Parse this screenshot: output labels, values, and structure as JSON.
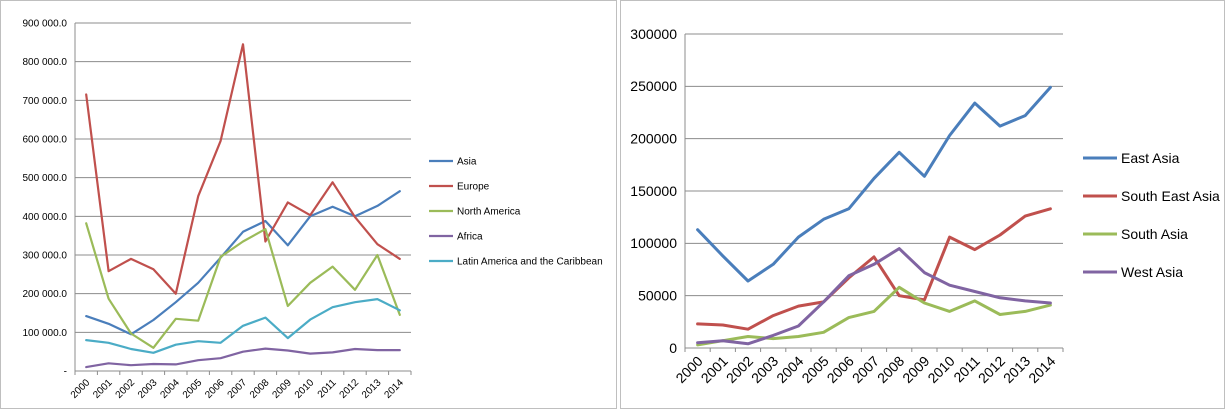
{
  "chart_data": [
    {
      "type": "line",
      "title": "",
      "xlabel": "",
      "ylabel": "",
      "ylim": [
        0,
        900000
      ],
      "y_ticks": [
        "-",
        "100 000.0",
        "200 000.0",
        "300 000.0",
        "400 000.0",
        "500 000.0",
        "600 000.0",
        "700 000.0",
        "800 000.0",
        "900 000.0"
      ],
      "grid": true,
      "legend_position": "right",
      "categories": [
        "2000",
        "2001",
        "2002",
        "2003",
        "2004",
        "2005",
        "2006",
        "2007",
        "2008",
        "2009",
        "2010",
        "2011",
        "2012",
        "2013",
        "2014"
      ],
      "series": [
        {
          "name": "Asia",
          "color": "#4a7ebb",
          "values": [
            142000,
            122000,
            95000,
            132000,
            178000,
            228000,
            293000,
            360000,
            388000,
            325000,
            400000,
            425000,
            400000,
            427000,
            465000
          ]
        },
        {
          "name": "Europe",
          "color": "#c0504d",
          "values": [
            715000,
            258000,
            290000,
            263000,
            200000,
            452000,
            595000,
            845000,
            335000,
            436000,
            403000,
            488000,
            398000,
            328000,
            290000
          ]
        },
        {
          "name": "North America",
          "color": "#9bbb59",
          "values": [
            382000,
            187000,
            97000,
            60000,
            135000,
            130000,
            295000,
            335000,
            367000,
            168000,
            228000,
            270000,
            210000,
            300000,
            145000
          ]
        },
        {
          "name": "Africa",
          "color": "#8064a2",
          "values": [
            10000,
            20000,
            15000,
            18000,
            17000,
            28000,
            33000,
            50000,
            58000,
            53000,
            45000,
            48000,
            57000,
            54000,
            54000
          ]
        },
        {
          "name": "Latin America and the Caribbean",
          "color": "#4bacc6",
          "values": [
            80000,
            73000,
            57000,
            47000,
            68000,
            77000,
            73000,
            117000,
            138000,
            85000,
            133000,
            165000,
            178000,
            186000,
            157000
          ]
        }
      ]
    },
    {
      "type": "line",
      "title": "",
      "xlabel": "",
      "ylabel": "",
      "ylim": [
        0,
        300000
      ],
      "y_ticks": [
        "0",
        "50000",
        "100000",
        "150000",
        "200000",
        "250000",
        "300000"
      ],
      "grid": true,
      "legend_position": "right",
      "categories": [
        "2000",
        "2001",
        "2002",
        "2003",
        "2004",
        "2005",
        "2006",
        "2007",
        "2008",
        "2009",
        "2010",
        "2011",
        "2012",
        "2013",
        "2014"
      ],
      "series": [
        {
          "name": "East Asia",
          "color": "#4a7ebb",
          "values": [
            113000,
            88000,
            64000,
            80000,
            106000,
            123000,
            133000,
            162000,
            187000,
            164000,
            203000,
            234000,
            212000,
            222000,
            249000
          ]
        },
        {
          "name": "South East Asia",
          "color": "#c0504d",
          "values": [
            23000,
            22000,
            18000,
            31000,
            40000,
            44000,
            67000,
            87000,
            50000,
            46000,
            106000,
            94000,
            108000,
            126000,
            133000
          ]
        },
        {
          "name": "South Asia",
          "color": "#9bbb59",
          "values": [
            3000,
            7000,
            11000,
            9000,
            11000,
            15000,
            29000,
            35000,
            58000,
            43000,
            35000,
            45000,
            32000,
            35000,
            41000
          ]
        },
        {
          "name": "West Asia",
          "color": "#8064a2",
          "values": [
            5000,
            7000,
            4000,
            12000,
            21000,
            44000,
            69000,
            80000,
            95000,
            72000,
            60000,
            54000,
            48000,
            45000,
            43000
          ]
        }
      ]
    }
  ]
}
